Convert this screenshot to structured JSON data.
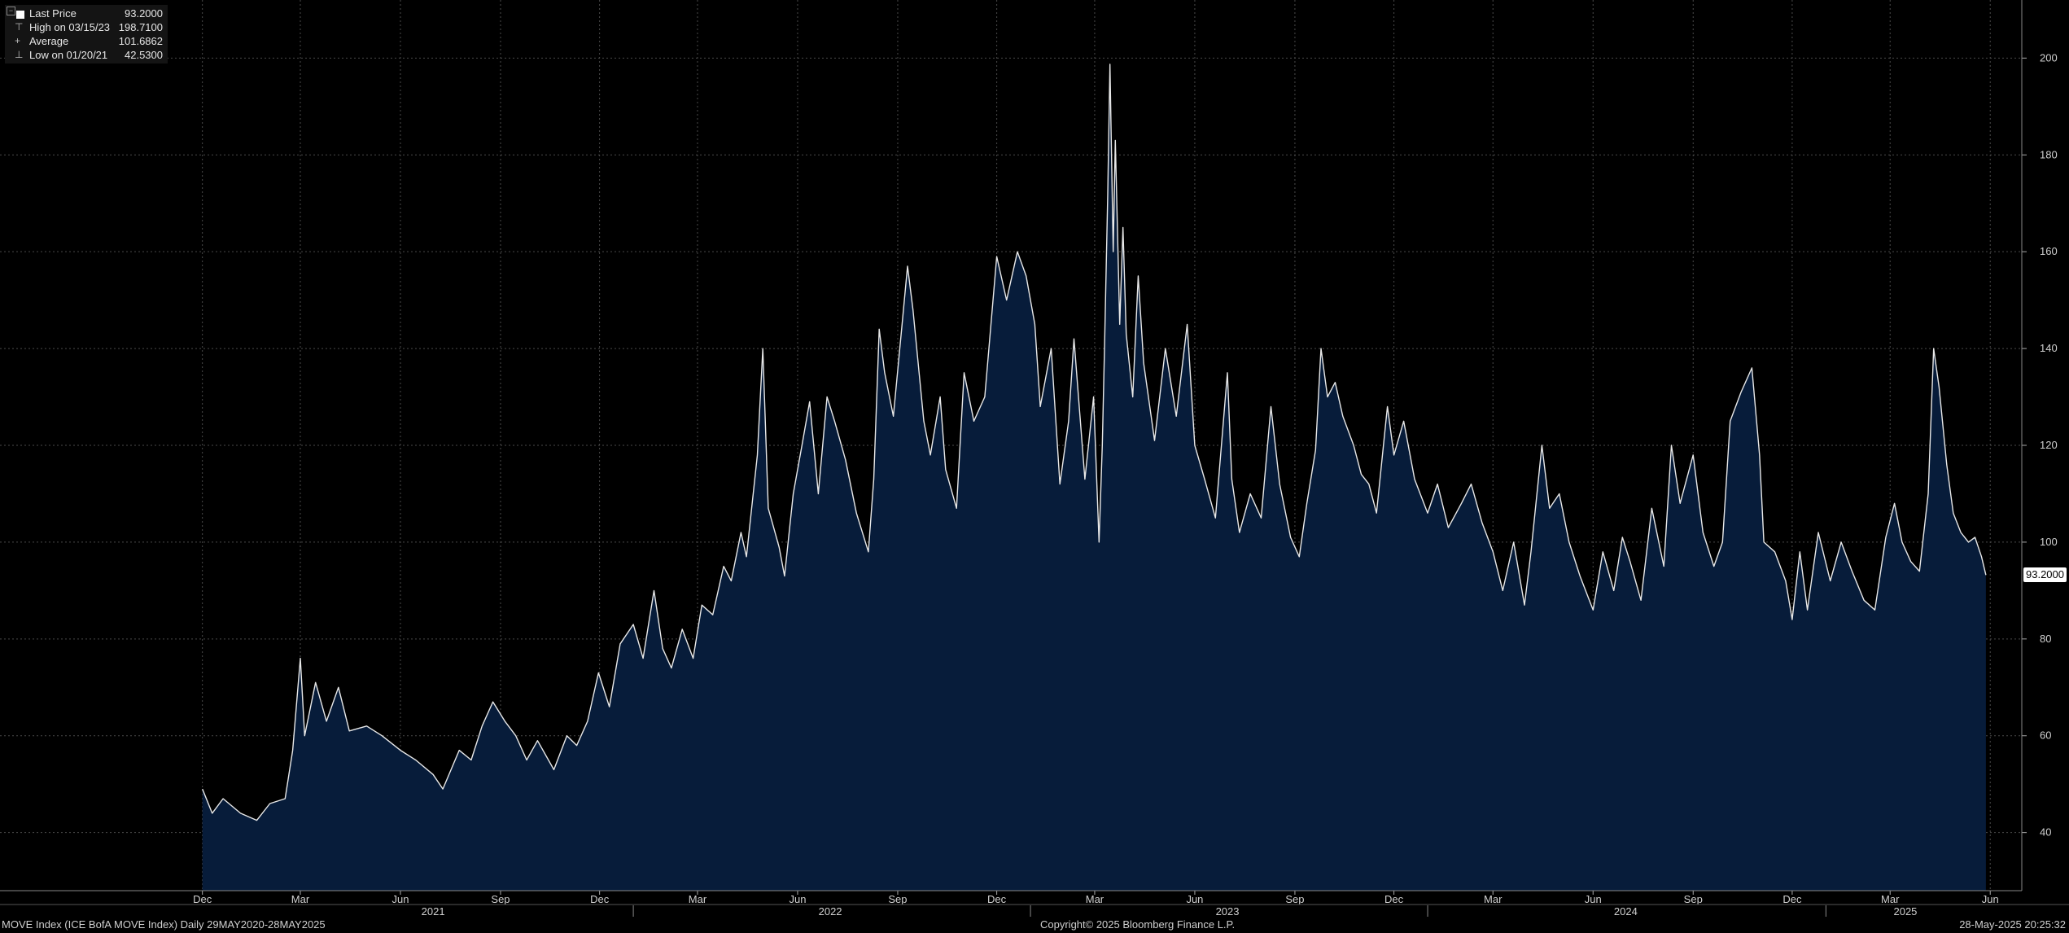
{
  "legend": {
    "rows": [
      {
        "label": "Last Price",
        "value": "93.2000",
        "glyph": ""
      },
      {
        "label": "High on 03/15/23",
        "value": "198.7100",
        "glyph": "⊤"
      },
      {
        "label": "Average",
        "value": "101.6862",
        "glyph": "+"
      },
      {
        "label": "Low on 01/20/21",
        "value": "42.5300",
        "glyph": "⊥"
      }
    ]
  },
  "last_price_tag": "93.2000",
  "footer": {
    "left": "MOVE Index (ICE BofA MOVE Index)  Daily 29MAY2020-28MAY2025",
    "center": "Copyright© 2025 Bloomberg Finance L.P.",
    "right": "28-May-2025 20:25:32"
  },
  "colors": {
    "background": "#000000",
    "area_fill": "#071c3a",
    "line": "#e8e8e8",
    "grid": "#4a4a4a"
  },
  "chart_data": {
    "type": "area",
    "title": "",
    "xlabel": "",
    "ylabel": "",
    "grid": true,
    "ylim": [
      28,
      212
    ],
    "y_ticks": [
      40,
      60,
      80,
      100,
      120,
      140,
      160,
      180,
      200
    ],
    "xlim": [
      "2020-05-29",
      "2025-06-30"
    ],
    "x_month_ticks": [
      {
        "date": "2020-12",
        "label": "Dec"
      },
      {
        "date": "2021-03",
        "label": "Mar"
      },
      {
        "date": "2021-06",
        "label": "Jun"
      },
      {
        "date": "2021-09",
        "label": "Sep"
      },
      {
        "date": "2021-12",
        "label": "Dec"
      },
      {
        "date": "2022-03",
        "label": "Mar"
      },
      {
        "date": "2022-06",
        "label": "Jun"
      },
      {
        "date": "2022-09",
        "label": "Sep"
      },
      {
        "date": "2022-12",
        "label": "Dec"
      },
      {
        "date": "2023-03",
        "label": "Mar"
      },
      {
        "date": "2023-06",
        "label": "Jun"
      },
      {
        "date": "2023-09",
        "label": "Sep"
      },
      {
        "date": "2023-12",
        "label": "Dec"
      },
      {
        "date": "2024-03",
        "label": "Mar"
      },
      {
        "date": "2024-06",
        "label": "Jun"
      },
      {
        "date": "2024-09",
        "label": "Sep"
      },
      {
        "date": "2024-12",
        "label": "Dec"
      },
      {
        "date": "2025-03",
        "label": "Mar"
      },
      {
        "date": "2025-06",
        "label": "Jun"
      }
    ],
    "x_year_labels": [
      {
        "date": "2021-07-01",
        "label": "2021"
      },
      {
        "date": "2022-07-01",
        "label": "2022"
      },
      {
        "date": "2023-07-01",
        "label": "2023"
      },
      {
        "date": "2024-07-01",
        "label": "2024"
      },
      {
        "date": "2025-03-15",
        "label": "2025"
      }
    ],
    "year_boundaries": [
      "2022-01-01",
      "2023-01-01",
      "2024-01-01",
      "2025-01-01"
    ],
    "series": [
      {
        "name": "MOVE Index",
        "points": [
          [
            "2020-12-01",
            49
          ],
          [
            "2020-12-10",
            44
          ],
          [
            "2020-12-20",
            47
          ],
          [
            "2021-01-05",
            44
          ],
          [
            "2021-01-20",
            42.53
          ],
          [
            "2021-02-01",
            46
          ],
          [
            "2021-02-15",
            47
          ],
          [
            "2021-02-22",
            57
          ],
          [
            "2021-03-01",
            76
          ],
          [
            "2021-03-05",
            60
          ],
          [
            "2021-03-15",
            71
          ],
          [
            "2021-03-25",
            63
          ],
          [
            "2021-04-05",
            70
          ],
          [
            "2021-04-15",
            61
          ],
          [
            "2021-05-01",
            62
          ],
          [
            "2021-05-15",
            60
          ],
          [
            "2021-06-01",
            57
          ],
          [
            "2021-06-15",
            55
          ],
          [
            "2021-07-01",
            52
          ],
          [
            "2021-07-10",
            49
          ],
          [
            "2021-07-25",
            57
          ],
          [
            "2021-08-05",
            55
          ],
          [
            "2021-08-15",
            62
          ],
          [
            "2021-08-25",
            67
          ],
          [
            "2021-09-05",
            63
          ],
          [
            "2021-09-15",
            60
          ],
          [
            "2021-09-25",
            55
          ],
          [
            "2021-10-05",
            59
          ],
          [
            "2021-10-20",
            53
          ],
          [
            "2021-11-01",
            60
          ],
          [
            "2021-11-10",
            58
          ],
          [
            "2021-11-20",
            63
          ],
          [
            "2021-11-30",
            73
          ],
          [
            "2021-12-10",
            66
          ],
          [
            "2021-12-20",
            79
          ],
          [
            "2022-01-01",
            83
          ],
          [
            "2022-01-10",
            76
          ],
          [
            "2022-01-20",
            90
          ],
          [
            "2022-01-28",
            78
          ],
          [
            "2022-02-05",
            74
          ],
          [
            "2022-02-15",
            82
          ],
          [
            "2022-02-25",
            76
          ],
          [
            "2022-03-05",
            87
          ],
          [
            "2022-03-15",
            85
          ],
          [
            "2022-03-25",
            95
          ],
          [
            "2022-04-01",
            92
          ],
          [
            "2022-04-10",
            102
          ],
          [
            "2022-04-15",
            97
          ],
          [
            "2022-04-25",
            118
          ],
          [
            "2022-04-30",
            140
          ],
          [
            "2022-05-05",
            107
          ],
          [
            "2022-05-15",
            99
          ],
          [
            "2022-05-20",
            93
          ],
          [
            "2022-05-28",
            110
          ],
          [
            "2022-06-05",
            120
          ],
          [
            "2022-06-12",
            129
          ],
          [
            "2022-06-20",
            110
          ],
          [
            "2022-06-28",
            130
          ],
          [
            "2022-07-05",
            125
          ],
          [
            "2022-07-15",
            117
          ],
          [
            "2022-07-25",
            106
          ],
          [
            "2022-08-05",
            98
          ],
          [
            "2022-08-10",
            113
          ],
          [
            "2022-08-15",
            144
          ],
          [
            "2022-08-20",
            135
          ],
          [
            "2022-08-28",
            126
          ],
          [
            "2022-09-05",
            145
          ],
          [
            "2022-09-10",
            157
          ],
          [
            "2022-09-15",
            148
          ],
          [
            "2022-09-25",
            125
          ],
          [
            "2022-10-01",
            118
          ],
          [
            "2022-10-10",
            130
          ],
          [
            "2022-10-15",
            115
          ],
          [
            "2022-10-25",
            107
          ],
          [
            "2022-11-01",
            135
          ],
          [
            "2022-11-10",
            125
          ],
          [
            "2022-11-20",
            130
          ],
          [
            "2022-12-01",
            159
          ],
          [
            "2022-12-10",
            150
          ],
          [
            "2022-12-20",
            160
          ],
          [
            "2022-12-28",
            155
          ],
          [
            "2023-01-05",
            145
          ],
          [
            "2023-01-10",
            128
          ],
          [
            "2023-01-20",
            140
          ],
          [
            "2023-01-28",
            112
          ],
          [
            "2023-02-05",
            125
          ],
          [
            "2023-02-10",
            142
          ],
          [
            "2023-02-20",
            113
          ],
          [
            "2023-02-28",
            130
          ],
          [
            "2023-03-05",
            100
          ],
          [
            "2023-03-08",
            120
          ],
          [
            "2023-03-10",
            140
          ],
          [
            "2023-03-13",
            172
          ],
          [
            "2023-03-15",
            198.71
          ],
          [
            "2023-03-18",
            160
          ],
          [
            "2023-03-20",
            183
          ],
          [
            "2023-03-24",
            145
          ],
          [
            "2023-03-27",
            165
          ],
          [
            "2023-03-30",
            143
          ],
          [
            "2023-04-05",
            130
          ],
          [
            "2023-04-10",
            155
          ],
          [
            "2023-04-15",
            137
          ],
          [
            "2023-04-25",
            121
          ],
          [
            "2023-05-05",
            140
          ],
          [
            "2023-05-15",
            126
          ],
          [
            "2023-05-25",
            145
          ],
          [
            "2023-06-01",
            120
          ],
          [
            "2023-06-10",
            113
          ],
          [
            "2023-06-20",
            105
          ],
          [
            "2023-07-01",
            135
          ],
          [
            "2023-07-05",
            113
          ],
          [
            "2023-07-12",
            102
          ],
          [
            "2023-07-22",
            110
          ],
          [
            "2023-08-01",
            105
          ],
          [
            "2023-08-10",
            128
          ],
          [
            "2023-08-18",
            112
          ],
          [
            "2023-08-28",
            101
          ],
          [
            "2023-09-05",
            97
          ],
          [
            "2023-09-12",
            108
          ],
          [
            "2023-09-20",
            119
          ],
          [
            "2023-09-25",
            140
          ],
          [
            "2023-10-01",
            130
          ],
          [
            "2023-10-08",
            133
          ],
          [
            "2023-10-15",
            126
          ],
          [
            "2023-10-25",
            120
          ],
          [
            "2023-11-01",
            114
          ],
          [
            "2023-11-08",
            112
          ],
          [
            "2023-11-15",
            106
          ],
          [
            "2023-11-25",
            128
          ],
          [
            "2023-12-01",
            118
          ],
          [
            "2023-12-10",
            125
          ],
          [
            "2023-12-20",
            113
          ],
          [
            "2024-01-01",
            106
          ],
          [
            "2024-01-10",
            112
          ],
          [
            "2024-01-20",
            103
          ],
          [
            "2024-02-01",
            108
          ],
          [
            "2024-02-10",
            112
          ],
          [
            "2024-02-20",
            104
          ],
          [
            "2024-03-01",
            98
          ],
          [
            "2024-03-10",
            90
          ],
          [
            "2024-03-20",
            100
          ],
          [
            "2024-03-30",
            87
          ],
          [
            "2024-04-05",
            98
          ],
          [
            "2024-04-15",
            120
          ],
          [
            "2024-04-22",
            107
          ],
          [
            "2024-05-01",
            110
          ],
          [
            "2024-05-10",
            100
          ],
          [
            "2024-05-20",
            93
          ],
          [
            "2024-06-01",
            86
          ],
          [
            "2024-06-10",
            98
          ],
          [
            "2024-06-20",
            90
          ],
          [
            "2024-06-28",
            101
          ],
          [
            "2024-07-05",
            96
          ],
          [
            "2024-07-15",
            88
          ],
          [
            "2024-07-25",
            107
          ],
          [
            "2024-08-05",
            95
          ],
          [
            "2024-08-12",
            120
          ],
          [
            "2024-08-20",
            108
          ],
          [
            "2024-09-01",
            118
          ],
          [
            "2024-09-10",
            102
          ],
          [
            "2024-09-20",
            95
          ],
          [
            "2024-09-28",
            100
          ],
          [
            "2024-10-05",
            125
          ],
          [
            "2024-10-15",
            131
          ],
          [
            "2024-10-25",
            136
          ],
          [
            "2024-11-01",
            118
          ],
          [
            "2024-11-05",
            100
          ],
          [
            "2024-11-15",
            98
          ],
          [
            "2024-11-25",
            92
          ],
          [
            "2024-12-01",
            84
          ],
          [
            "2024-12-08",
            98
          ],
          [
            "2024-12-15",
            86
          ],
          [
            "2024-12-25",
            102
          ],
          [
            "2025-01-05",
            92
          ],
          [
            "2025-01-15",
            100
          ],
          [
            "2025-01-25",
            94
          ],
          [
            "2025-02-05",
            88
          ],
          [
            "2025-02-15",
            86
          ],
          [
            "2025-02-25",
            101
          ],
          [
            "2025-03-05",
            108
          ],
          [
            "2025-03-12",
            100
          ],
          [
            "2025-03-20",
            96
          ],
          [
            "2025-03-28",
            94
          ],
          [
            "2025-04-05",
            110
          ],
          [
            "2025-04-10",
            140
          ],
          [
            "2025-04-15",
            132
          ],
          [
            "2025-04-22",
            116
          ],
          [
            "2025-04-28",
            106
          ],
          [
            "2025-05-05",
            102
          ],
          [
            "2025-05-12",
            100
          ],
          [
            "2025-05-18",
            101
          ],
          [
            "2025-05-24",
            97
          ],
          [
            "2025-05-28",
            93.2
          ]
        ]
      }
    ]
  }
}
